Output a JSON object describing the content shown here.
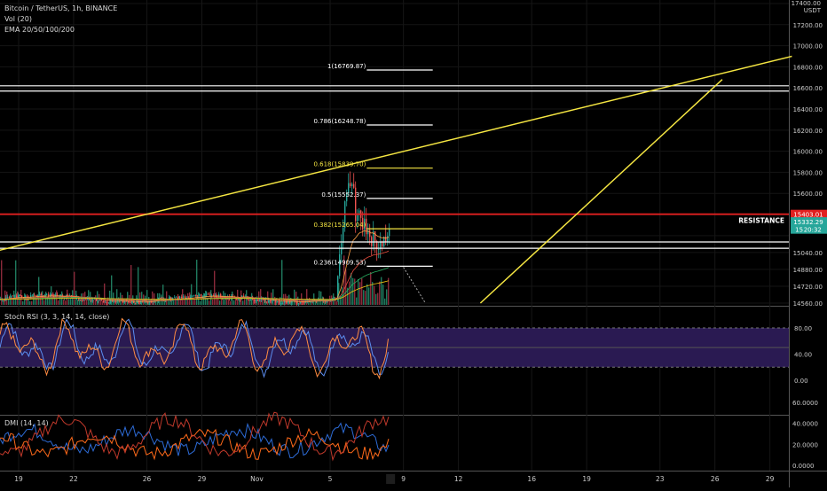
{
  "chart_data": [
    {
      "type": "candlestick",
      "title": "Bitcoin / TetherUS, 1h, BINANCE",
      "indicator_labels": [
        "Vol (20)",
        "EMA 20/50/100/200"
      ],
      "y_axis_unit": "USDT",
      "y_ticks": [
        17400,
        17200,
        17000,
        16800,
        16600,
        16400,
        16200,
        16000,
        15800,
        15600,
        15400,
        15200,
        15040,
        14880,
        14720,
        14560
      ],
      "y_tick_labels": [
        "17400.00",
        "17200.00",
        "17000.00",
        "16800.00",
        "16600.00",
        "16400.00",
        "16200.00",
        "16000.00",
        "15800.00",
        "15600.00",
        "",
        "",
        "15040.00",
        "14880.00",
        "14720.00",
        "14560.00"
      ],
      "x_tick_labels": [
        "19",
        "22",
        "26",
        "29",
        "Nov",
        "5",
        "9",
        "12",
        "16",
        "19",
        "23",
        "26",
        "29"
      ],
      "price_badges": [
        {
          "label": "15403.01",
          "value": 15403.01,
          "color": "#e02020"
        },
        {
          "label": "15332.29",
          "value": 15332.29,
          "color": "#26a69a"
        },
        {
          "label": "15 20:32",
          "value": 15260,
          "color": "#26a69a"
        }
      ],
      "fib_levels": [
        {
          "label": "1(16769.87)",
          "value": 16769.87,
          "color": "#ffffff"
        },
        {
          "label": "0.786(16248.78)",
          "value": 16248.78,
          "color": "#ffffff"
        },
        {
          "label": "0.618(15839.70)",
          "value": 15839.7,
          "color": "#f5e642"
        },
        {
          "label": "0.5(15552.37)",
          "value": 15552.37,
          "color": "#ffffff"
        },
        {
          "label": "0.382(15265.04)",
          "value": 15265.04,
          "color": "#f5e642"
        },
        {
          "label": "0.236(14909.53)",
          "value": 14909.53,
          "color": "#ffffff"
        }
      ],
      "horizontal_levels": [
        {
          "value": 16620,
          "color": "#ffffff"
        },
        {
          "value": 16570,
          "color": "#ffffff"
        },
        {
          "value": 15403.01,
          "color": "#e02020"
        },
        {
          "value": 15140,
          "color": "#ffffff"
        },
        {
          "value": 15080,
          "color": "#ffffff"
        }
      ],
      "annotations": [
        {
          "text": "RESISTANCE",
          "value": 15403.01
        }
      ],
      "trendlines": [
        {
          "x": [
            "Oct 17",
            "Dec 1"
          ],
          "y": [
            15020,
            16900
          ],
          "color": "#f5e642"
        },
        {
          "x": [
            "Nov 13",
            "Nov 26"
          ],
          "y": [
            14560,
            16680
          ],
          "color": "#f5e642"
        }
      ],
      "price_range": [
        14560,
        17480
      ],
      "last_price": 15332.29
    },
    {
      "type": "line",
      "title": "Stoch RSI (3, 3, 14, 14, close)",
      "y_ticks": [
        80,
        40,
        0
      ],
      "y_tick_labels": [
        "80.00",
        "40.00",
        "0.00"
      ],
      "band": [
        20,
        80
      ],
      "band_color": "#2a1a52",
      "series": [
        {
          "color": "#5b8def"
        },
        {
          "color": "#ff8c42"
        }
      ]
    },
    {
      "type": "line",
      "title": "DMI (14, 14)",
      "y_ticks": [
        60,
        40,
        20,
        0
      ],
      "y_tick_labels": [
        "60.0000",
        "40.0000",
        "20.0000",
        "0.0000"
      ],
      "y_range": [
        0,
        70
      ],
      "series": [
        {
          "color": "#2d6bd6"
        },
        {
          "color": "#ff6a1a"
        },
        {
          "color": "#c0392b"
        }
      ]
    }
  ],
  "axis": {
    "unit_label": "USDT"
  }
}
